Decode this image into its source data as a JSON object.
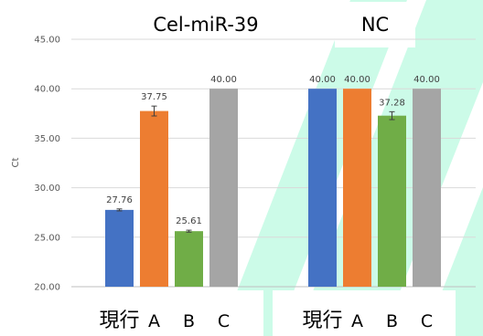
{
  "chart_data": {
    "type": "bar",
    "ylabel": "Ct",
    "ylim": [
      20,
      45
    ],
    "yticks": [
      "20.00",
      "25.00",
      "30.00",
      "35.00",
      "40.00",
      "45.00"
    ],
    "grid": true,
    "groups": [
      {
        "title": "Cel-miR-39",
        "bars": [
          {
            "category": "現行",
            "value": 27.76,
            "label": "27.76",
            "error": 0.1,
            "color": "#4472c4"
          },
          {
            "category": "A",
            "value": 37.75,
            "label": "37.75",
            "error": 0.5,
            "color": "#ed7d31"
          },
          {
            "category": "B",
            "value": 25.61,
            "label": "25.61",
            "error": 0.1,
            "color": "#70ad47"
          },
          {
            "category": "C",
            "value": 40.0,
            "label": "40.00",
            "error": 0.0,
            "color": "#a5a5a5"
          }
        ]
      },
      {
        "title": "NC",
        "bars": [
          {
            "category": "現行",
            "value": 40.0,
            "label": "40.00",
            "error": 0.0,
            "color": "#4472c4"
          },
          {
            "category": "A",
            "value": 40.0,
            "label": "40.00",
            "error": 0.0,
            "color": "#ed7d31"
          },
          {
            "category": "B",
            "value": 37.28,
            "label": "37.28",
            "error": 0.4,
            "color": "#70ad47"
          },
          {
            "category": "C",
            "value": 40.0,
            "label": "40.00",
            "error": 0.0,
            "color": "#a5a5a5"
          }
        ]
      }
    ],
    "background_color": "#ccfbe8"
  }
}
